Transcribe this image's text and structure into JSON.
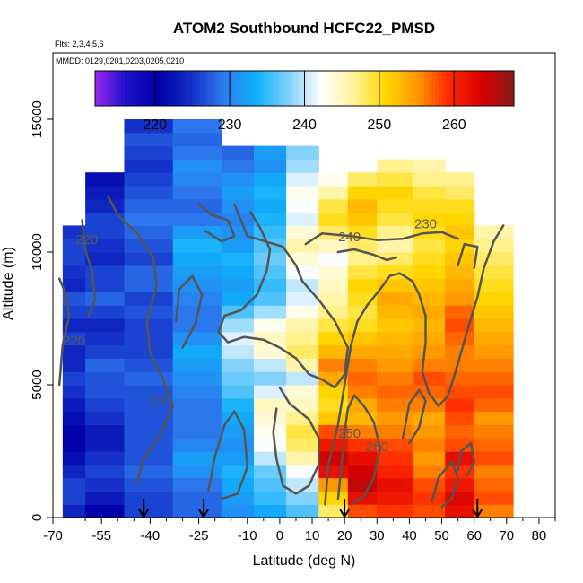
{
  "chart_data": {
    "type": "heatmap",
    "title": "ATOM2 Southbound HCFC22_PMSD",
    "flights_note": "Flts: 2,3,4,5,6",
    "dates_note": "MMDD: 0129,0201,0203,0205,0210",
    "xlabel": "Latitude (deg N)",
    "ylabel": "Altitude (m)",
    "xlim": [
      -70,
      85
    ],
    "ylim": [
      0,
      17500
    ],
    "x_ticks": [
      -70,
      -55,
      -40,
      -25,
      -10,
      0,
      10,
      20,
      30,
      40,
      50,
      60,
      70,
      80
    ],
    "x_minor_ticks": [
      -60,
      -50,
      -45,
      -35,
      -30,
      -20,
      -15,
      -5,
      5,
      15,
      25,
      35,
      45,
      55,
      65,
      75,
      85
    ],
    "y_ticks": [
      0,
      5000,
      10000,
      15000
    ],
    "colorbar": {
      "range": [
        212,
        268
      ],
      "ticks": [
        220,
        230,
        240,
        250,
        260
      ],
      "colors": [
        "#9a28f0",
        "#1a10c8",
        "#0000a8",
        "#1530c8",
        "#2e7bf0",
        "#0fb0fb",
        "#7fd0fb",
        "#ffffff",
        "#fff4a0",
        "#ffd800",
        "#ff9800",
        "#ff2800",
        "#d80000",
        "#8a1a1a"
      ]
    },
    "contour_levels": [
      220,
      230,
      240,
      250,
      260
    ],
    "contour_labels": [
      {
        "text": "220",
        "lat": -63.5,
        "alt": 6500
      },
      {
        "text": "220",
        "lat": -59.5,
        "alt": 10300
      },
      {
        "text": "230",
        "lat": -37,
        "alt": 4200
      },
      {
        "text": "240",
        "lat": 21.5,
        "alt": 10400
      },
      {
        "text": "230",
        "lat": 45,
        "alt": 10900
      },
      {
        "text": "250",
        "lat": 21.5,
        "alt": 3000
      },
      {
        "text": "260",
        "lat": 30,
        "alt": 2500
      }
    ],
    "arrows_lat": [
      -42,
      -23.5,
      20,
      61
    ],
    "zones": [
      {
        "lat": [
          -67,
          -60
        ],
        "values": [
          224,
          226,
          226,
          224,
          222,
          220,
          221,
          222,
          223,
          225,
          226,
          224,
          224,
          226,
          224,
          226,
          227,
          224,
          225,
          226,
          226,
          225
        ]
      },
      {
        "lat": [
          -60,
          -48
        ],
        "values": [
          221,
          223,
          225,
          226,
          225,
          223,
          223,
          225,
          226,
          227,
          227,
          228,
          226,
          225,
          224,
          226,
          228,
          226,
          226,
          224,
          225,
          226,
          226,
          224,
          223,
          222
        ]
      },
      {
        "lat": [
          -48,
          -33
        ],
        "values": [
          226,
          226,
          227,
          228,
          227,
          227,
          227,
          227,
          227,
          227,
          228,
          227,
          226,
          226,
          226,
          227,
          226,
          228,
          228,
          226,
          227,
          228,
          229,
          228,
          227,
          226,
          225,
          226,
          227,
          225
        ]
      },
      {
        "lat": [
          -33,
          -18
        ],
        "values": [
          228,
          228,
          229,
          231,
          232,
          230,
          229,
          229,
          229,
          230,
          231,
          232,
          233,
          231,
          229,
          229,
          230,
          231,
          232,
          233,
          234,
          232,
          229,
          228,
          229,
          230,
          231,
          229,
          228,
          229
        ]
      },
      {
        "lat": [
          -18,
          -8
        ],
        "values": [
          231,
          232,
          233,
          234,
          232,
          231,
          232,
          233,
          234,
          236,
          237,
          238,
          240,
          241,
          239,
          236,
          233,
          232,
          233,
          234,
          232,
          231,
          230,
          231,
          232,
          231,
          229,
          228
        ]
      },
      {
        "lat": [
          -8,
          2
        ],
        "values": [
          233,
          235,
          236,
          237,
          240,
          242,
          243,
          244,
          245,
          241,
          238,
          240,
          244,
          245,
          243,
          239,
          236,
          235,
          236,
          237,
          236,
          235,
          234,
          233,
          234,
          233,
          231,
          232
        ]
      },
      {
        "lat": [
          2,
          12
        ],
        "values": [
          236,
          238,
          240,
          242,
          246,
          248,
          249,
          247,
          245,
          244,
          240,
          246,
          248,
          247,
          246,
          243,
          241,
          240,
          242,
          244,
          246,
          244,
          241,
          242,
          243,
          241,
          239,
          238
        ]
      },
      {
        "lat": [
          12,
          21
        ],
        "values": [
          248,
          251,
          255,
          262,
          264,
          261,
          258,
          252,
          250,
          251,
          254,
          256,
          253,
          251,
          249,
          247,
          246,
          245,
          244,
          242,
          245,
          248,
          250,
          249,
          246,
          243
        ]
      },
      {
        "lat": [
          21,
          30
        ],
        "values": [
          258,
          262,
          265,
          264,
          262,
          259,
          256,
          253,
          254,
          256,
          257,
          256,
          254,
          252,
          250,
          249,
          250,
          251,
          249,
          247,
          248,
          250,
          252,
          253,
          251,
          248
        ]
      },
      {
        "lat": [
          30,
          41
        ],
        "values": [
          259,
          261,
          262,
          260,
          259,
          258,
          256,
          255,
          256,
          257,
          256,
          255,
          254,
          253,
          252,
          253,
          254,
          252,
          250,
          248,
          246,
          247,
          249,
          250,
          251,
          249,
          247
        ]
      },
      {
        "lat": [
          41,
          51
        ],
        "values": [
          258,
          259,
          258,
          256,
          255,
          256,
          255,
          254,
          256,
          257,
          258,
          256,
          255,
          254,
          253,
          254,
          253,
          252,
          251,
          250,
          249,
          250,
          251,
          250,
          249,
          247,
          246
        ]
      },
      {
        "lat": [
          51,
          60
        ],
        "values": [
          262,
          263,
          261,
          259,
          262,
          258,
          257,
          258,
          259,
          258,
          257,
          256,
          256,
          257,
          258,
          257,
          255,
          254,
          253,
          252,
          251,
          252,
          251,
          250,
          248,
          247
        ]
      },
      {
        "lat": [
          60,
          72
        ],
        "values": [
          256,
          258,
          257,
          256,
          258,
          257,
          256,
          255,
          257,
          258,
          257,
          256,
          255,
          254,
          253,
          252,
          251,
          250,
          249,
          248,
          247,
          246
        ]
      }
    ],
    "contours": [
      {
        "level": 240,
        "points": [
          [
            -14,
            11800
          ],
          [
            -10,
            10600
          ],
          [
            1,
            10200
          ],
          [
            5,
            9500
          ],
          [
            7,
            8900
          ],
          [
            12,
            8200
          ],
          [
            17,
            7400
          ],
          [
            21,
            6400
          ],
          [
            20,
            5400
          ],
          [
            17,
            4900
          ],
          [
            13,
            5200
          ],
          [
            9,
            5400
          ],
          [
            5,
            6000
          ],
          [
            0,
            6400
          ],
          [
            -5,
            6700
          ],
          [
            -11,
            6800
          ],
          [
            -16,
            6600
          ],
          [
            -19,
            7000
          ],
          [
            -17,
            7600
          ],
          [
            -12,
            7800
          ],
          [
            -7,
            8400
          ],
          [
            -4,
            9300
          ],
          [
            -3,
            10100
          ],
          [
            -6,
            10900
          ],
          [
            -9,
            11500
          ]
        ]
      },
      {
        "level": 240,
        "points": [
          [
            8,
            10300
          ],
          [
            13,
            10700
          ],
          [
            22,
            10600
          ],
          [
            30,
            10450
          ],
          [
            38,
            10500
          ],
          [
            44,
            10700
          ],
          [
            50,
            10750
          ],
          [
            55,
            10500
          ]
        ]
      },
      {
        "level": 240,
        "points": [
          [
            0,
            4900
          ],
          [
            3,
            4300
          ],
          [
            9,
            3700
          ],
          [
            12,
            3000
          ],
          [
            12,
            2000
          ],
          [
            9,
            1200
          ],
          [
            5,
            900
          ],
          [
            1,
            1200
          ],
          [
            -1,
            2200
          ],
          [
            -2,
            3200
          ],
          [
            -1,
            4100
          ]
        ]
      },
      {
        "level": 230,
        "points": [
          [
            -44,
            1300
          ],
          [
            -42,
            2200
          ],
          [
            -37,
            3100
          ],
          [
            -33,
            4200
          ],
          [
            -36,
            5200
          ],
          [
            -40,
            6200
          ],
          [
            -41,
            7400
          ],
          [
            -38,
            8700
          ],
          [
            -39,
            9800
          ],
          [
            -44,
            10700
          ],
          [
            -50,
            11400
          ],
          [
            -53,
            12100
          ]
        ]
      },
      {
        "level": 230,
        "points": [
          [
            -30,
            6400
          ],
          [
            -26,
            7300
          ],
          [
            -24,
            8400
          ],
          [
            -27,
            9100
          ],
          [
            -31,
            8600
          ],
          [
            -32,
            7400
          ]
        ]
      },
      {
        "level": 230,
        "points": [
          [
            -22,
            1000
          ],
          [
            -20,
            2300
          ],
          [
            -17,
            3500
          ],
          [
            -14,
            4000
          ],
          [
            -11,
            3300
          ],
          [
            -10,
            1900
          ],
          [
            -13,
            900
          ],
          [
            -18,
            700
          ]
        ]
      },
      {
        "level": 230,
        "points": [
          [
            -25,
            11800
          ],
          [
            -21,
            11400
          ],
          [
            -16,
            11200
          ],
          [
            -14,
            10600
          ],
          [
            -18,
            10400
          ],
          [
            -23,
            10800
          ]
        ]
      },
      {
        "level": 220,
        "points": [
          [
            -68,
            5000
          ],
          [
            -67,
            6500
          ],
          [
            -65,
            7600
          ],
          [
            -66,
            8400
          ],
          [
            -68,
            9000
          ]
        ]
      },
      {
        "level": 220,
        "points": [
          [
            -61,
            11200
          ],
          [
            -60,
            10100
          ],
          [
            -58,
            9300
          ],
          [
            -57,
            8200
          ],
          [
            -59,
            7600
          ]
        ]
      },
      {
        "level": 250,
        "points": [
          [
            14,
            500
          ],
          [
            15,
            2000
          ],
          [
            18,
            3500
          ],
          [
            20,
            5000
          ],
          [
            22,
            6500
          ],
          [
            24,
            7400
          ],
          [
            27,
            8000
          ],
          [
            31,
            8600
          ],
          [
            34,
            9100
          ],
          [
            37,
            9200
          ],
          [
            41,
            8900
          ],
          [
            43,
            8400
          ],
          [
            45,
            7600
          ],
          [
            45,
            6600
          ],
          [
            44,
            5500
          ],
          [
            46,
            4700
          ],
          [
            49,
            4200
          ],
          [
            52,
            4600
          ],
          [
            55,
            5800
          ],
          [
            58,
            7100
          ],
          [
            61,
            8300
          ],
          [
            63,
            9400
          ],
          [
            66,
            10400
          ],
          [
            69,
            11000
          ]
        ]
      },
      {
        "level": 250,
        "points": [
          [
            18,
            10000
          ],
          [
            23,
            10100
          ],
          [
            29,
            9900
          ],
          [
            33,
            9700
          ],
          [
            36,
            9800
          ]
        ]
      },
      {
        "level": 260,
        "points": [
          [
            18,
            700
          ],
          [
            19,
            1900
          ],
          [
            20,
            3200
          ],
          [
            21,
            4100
          ],
          [
            23,
            4600
          ],
          [
            26,
            4200
          ],
          [
            29,
            3600
          ],
          [
            31,
            2600
          ],
          [
            29,
            1500
          ],
          [
            26,
            800
          ],
          [
            22,
            500
          ]
        ]
      },
      {
        "level": 260,
        "points": [
          [
            38,
            3000
          ],
          [
            40,
            4300
          ],
          [
            43,
            4800
          ],
          [
            45,
            4400
          ],
          [
            43,
            3400
          ],
          [
            40,
            2800
          ]
        ]
      },
      {
        "level": 260,
        "points": [
          [
            47,
            600
          ],
          [
            49,
            1500
          ],
          [
            53,
            2100
          ],
          [
            55,
            1500
          ],
          [
            53,
            700
          ],
          [
            50,
            400
          ]
        ]
      },
      {
        "level": 260,
        "points": [
          [
            55,
            1800
          ],
          [
            56,
            2500
          ],
          [
            59,
            2800
          ],
          [
            60,
            2100
          ],
          [
            58,
            1600
          ]
        ]
      },
      {
        "level": 260,
        "points": [
          [
            55,
            9500
          ],
          [
            57,
            10300
          ],
          [
            61,
            10200
          ],
          [
            60,
            9400
          ]
        ]
      }
    ],
    "grid": false,
    "legend_position": "top"
  }
}
